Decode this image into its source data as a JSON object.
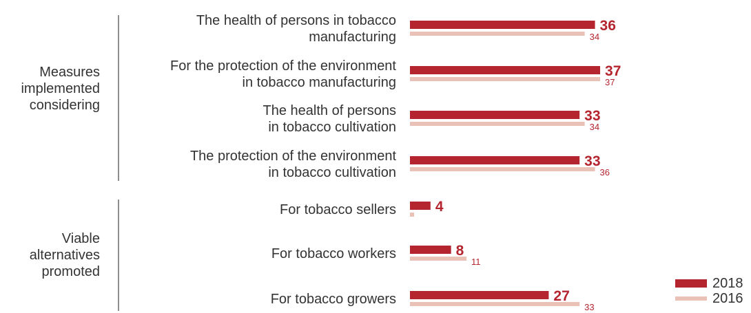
{
  "chart_data": {
    "type": "bar",
    "orientation": "horizontal",
    "groups": [
      {
        "label_lines": [
          "Measures",
          "implemented",
          "considering"
        ],
        "categories": [
          {
            "label_lines": [
              "The health of persons in tobacco",
              "manufacturing"
            ],
            "values": [
              36,
              34
            ]
          },
          {
            "label_lines": [
              "For the protection of the environment",
              "in tobacco manufacturing"
            ],
            "values": [
              37,
              37
            ]
          },
          {
            "label_lines": [
              "The health of persons",
              "in tobacco cultivation"
            ],
            "values": [
              33,
              34
            ]
          },
          {
            "label_lines": [
              "The protection of the environment",
              "in tobacco cultivation"
            ],
            "values": [
              33,
              36
            ]
          }
        ]
      },
      {
        "label_lines": [
          "Viable",
          "alternatives",
          "promoted"
        ],
        "categories": [
          {
            "label_lines": [
              "For tobacco sellers"
            ],
            "values": [
              4,
              0.4
            ]
          },
          {
            "label_lines": [
              "For tobacco workers"
            ],
            "values": [
              8,
              11
            ]
          },
          {
            "label_lines": [
              "For tobacco growers"
            ],
            "values": [
              27,
              33
            ]
          }
        ]
      }
    ],
    "series": [
      {
        "name": "2018",
        "color": "#b5252f",
        "show_value": [
          true,
          true,
          true,
          true,
          true,
          true,
          true
        ]
      },
      {
        "name": "2016",
        "color": "#e9c1b6",
        "show_value": [
          true,
          true,
          true,
          true,
          false,
          true,
          true
        ]
      }
    ],
    "xlim": [
      0,
      37
    ],
    "grid": false,
    "legend": "bottom-right"
  }
}
